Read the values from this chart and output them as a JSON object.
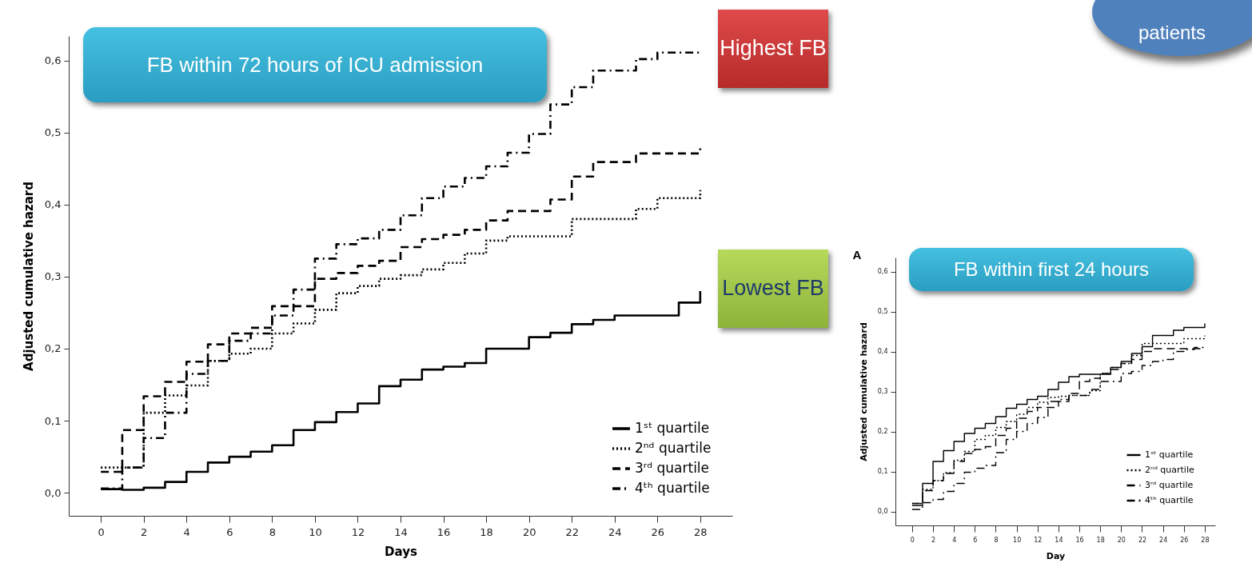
{
  "chart_data": [
    {
      "type": "step",
      "title": "FB within 72 hours of ICU admission",
      "xlabel": "Days",
      "ylabel": "Adjusted cumulative hazard",
      "x": [
        0,
        1,
        2,
        3,
        4,
        5,
        6,
        7,
        8,
        9,
        10,
        11,
        12,
        13,
        14,
        15,
        16,
        17,
        18,
        19,
        20,
        21,
        22,
        23,
        24,
        25,
        26,
        27,
        28
      ],
      "series": [
        {
          "name": "1ˢᵗ quartile",
          "color": "#000000",
          "line_style": "solid",
          "values": [
            0.005,
            0.004,
            0.007,
            0.015,
            0.029,
            0.042,
            0.05,
            0.057,
            0.066,
            0.087,
            0.098,
            0.112,
            0.124,
            0.148,
            0.157,
            0.171,
            0.175,
            0.18,
            0.2,
            0.2,
            0.216,
            0.222,
            0.234,
            0.24,
            0.246,
            0.246,
            0.246,
            0.264,
            0.28
          ]
        },
        {
          "name": "2ⁿᵈ quartile",
          "color": "#000000",
          "line_style": "dotted",
          "values": [
            0.035,
            0.035,
            0.111,
            0.135,
            0.149,
            0.183,
            0.193,
            0.2,
            0.221,
            0.235,
            0.254,
            0.277,
            0.287,
            0.297,
            0.302,
            0.31,
            0.319,
            0.332,
            0.35,
            0.356,
            0.356,
            0.356,
            0.38,
            0.38,
            0.38,
            0.394,
            0.409,
            0.409,
            0.42
          ]
        },
        {
          "name": "3ʳᵈ quartile",
          "color": "#000000",
          "line_style": "dashed",
          "values": [
            0.029,
            0.087,
            0.134,
            0.154,
            0.182,
            0.206,
            0.221,
            0.229,
            0.259,
            0.259,
            0.297,
            0.305,
            0.315,
            0.322,
            0.341,
            0.352,
            0.358,
            0.365,
            0.378,
            0.391,
            0.391,
            0.407,
            0.439,
            0.459,
            0.459,
            0.471,
            0.471,
            0.471,
            0.478
          ]
        },
        {
          "name": "4ᵗʰ quartile",
          "color": "#000000",
          "line_style": "dashdot",
          "values": [
            0.006,
            0.035,
            0.076,
            0.111,
            0.165,
            0.183,
            0.211,
            0.221,
            0.246,
            0.282,
            0.325,
            0.345,
            0.353,
            0.365,
            0.385,
            0.409,
            0.425,
            0.437,
            0.453,
            0.472,
            0.498,
            0.539,
            0.563,
            0.586,
            0.586,
            0.602,
            0.611,
            0.611,
            0.611
          ]
        }
      ],
      "xlim": [
        -1.5,
        29.5
      ],
      "xticks": [
        0,
        2,
        4,
        6,
        8,
        10,
        12,
        14,
        16,
        18,
        20,
        22,
        24,
        26,
        28
      ],
      "ylim": [
        -0.032,
        0.634
      ],
      "yticks": [
        {
          "value": 0,
          "label": "0,0"
        },
        {
          "value": 0.1,
          "label": "0,1"
        },
        {
          "value": 0.2,
          "label": "0,2"
        },
        {
          "value": 0.3,
          "label": "0,3"
        },
        {
          "value": 0.4,
          "label": "0,4"
        },
        {
          "value": 0.5,
          "label": "0,5"
        },
        {
          "value": 0.6,
          "label": "0,6"
        }
      ],
      "legend": "bottom right",
      "annotations": [
        "Highest FB",
        "Lowest FB",
        "patients"
      ]
    },
    {
      "type": "step",
      "title": "FB within first 24 hours",
      "xlabel": "Day",
      "ylabel": "Adjusted cumulative hazard",
      "x": [
        0,
        1,
        2,
        3,
        4,
        5,
        6,
        7,
        8,
        9,
        10,
        11,
        12,
        13,
        14,
        15,
        16,
        17,
        18,
        19,
        20,
        21,
        22,
        23,
        24,
        25,
        26,
        27,
        28
      ],
      "series": [
        {
          "name": "1ˢᵗ quartile",
          "color": "#000000",
          "line_style": "solid",
          "values": [
            0.015,
            0.07,
            0.125,
            0.152,
            0.175,
            0.195,
            0.208,
            0.22,
            0.237,
            0.258,
            0.268,
            0.28,
            0.288,
            0.305,
            0.323,
            0.337,
            0.343,
            0.343,
            0.343,
            0.36,
            0.375,
            0.395,
            0.412,
            0.44,
            0.44,
            0.453,
            0.46,
            0.46,
            0.47
          ]
        },
        {
          "name": "2ⁿᵈ quartile",
          "color": "#000000",
          "line_style": "dotted",
          "values": [
            0.02,
            0.055,
            0.077,
            0.097,
            0.128,
            0.15,
            0.18,
            0.19,
            0.21,
            0.225,
            0.243,
            0.26,
            0.273,
            0.285,
            0.288,
            0.29,
            0.29,
            0.302,
            0.345,
            0.36,
            0.37,
            0.39,
            0.42,
            0.42,
            0.42,
            0.42,
            0.432,
            0.432,
            0.44
          ]
        },
        {
          "name": "3ʳᵈ quartile",
          "color": "#000000",
          "line_style": "dashed",
          "values": [
            0.02,
            0.052,
            0.077,
            0.095,
            0.125,
            0.145,
            0.155,
            0.162,
            0.19,
            0.208,
            0.233,
            0.25,
            0.26,
            0.26,
            0.275,
            0.295,
            0.325,
            0.333,
            0.345,
            0.355,
            0.37,
            0.38,
            0.4,
            0.407,
            0.407,
            0.407,
            0.407,
            0.407,
            0.407
          ]
        },
        {
          "name": "4ᵗʰ quartile",
          "color": "#000000",
          "line_style": "dashdot",
          "values": [
            0.005,
            0.022,
            0.03,
            0.05,
            0.07,
            0.098,
            0.108,
            0.115,
            0.147,
            0.18,
            0.2,
            0.22,
            0.235,
            0.275,
            0.28,
            0.29,
            0.29,
            0.305,
            0.325,
            0.325,
            0.345,
            0.35,
            0.365,
            0.375,
            0.38,
            0.4,
            0.405,
            0.41,
            0.415
          ]
        }
      ],
      "xlim": [
        -1.6,
        29
      ],
      "xticks": [
        0,
        2,
        4,
        6,
        8,
        10,
        12,
        14,
        16,
        18,
        20,
        22,
        24,
        26,
        28
      ],
      "ylim": [
        -0.035,
        0.635
      ],
      "yticks": [
        {
          "value": 0,
          "label": "0,0"
        },
        {
          "value": 0.1,
          "label": "0,1"
        },
        {
          "value": 0.2,
          "label": "0,2"
        },
        {
          "value": 0.3,
          "label": "0,3"
        },
        {
          "value": 0.4,
          "label": "0,4"
        },
        {
          "value": 0.5,
          "label": "0,5"
        },
        {
          "value": 0.6,
          "label": "0,6"
        }
      ],
      "legend": "bottom right",
      "annotations": [
        "A"
      ]
    }
  ]
}
